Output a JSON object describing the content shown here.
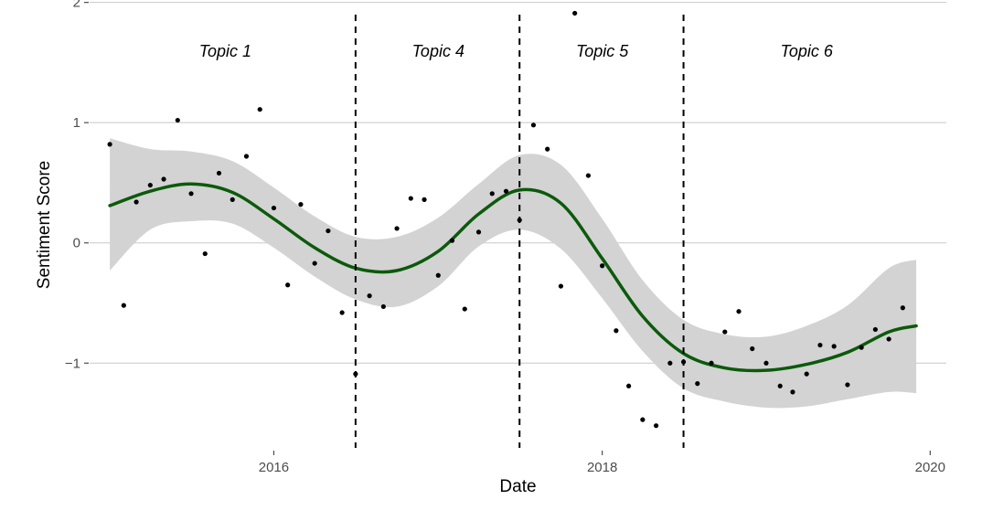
{
  "chart_data": {
    "type": "scatter",
    "title": "",
    "xlabel": "Date",
    "ylabel": "Sentiment Score",
    "x_axis_kind": "date",
    "xlim": [
      "2014-11-17",
      "2020-02-06"
    ],
    "ylim": [
      -1.72,
      2.02
    ],
    "x_ticks": [
      {
        "value": "2016-01-01",
        "label": "2016"
      },
      {
        "value": "2018-01-01",
        "label": "2018"
      },
      {
        "value": "2020-01-01",
        "label": "2020"
      }
    ],
    "y_ticks": [
      {
        "value": -1,
        "label": "−1"
      },
      {
        "value": 0,
        "label": "0"
      },
      {
        "value": 1,
        "label": "1"
      },
      {
        "value": 2,
        "label": "2"
      }
    ],
    "grid": "horizontal",
    "colors": {
      "smooth": "#0b5a0b",
      "ribbon": "#d3d3d3",
      "points": "#000000",
      "grid": "#c8c8c8"
    },
    "topic_breaks": [
      "2016-07-01",
      "2017-07-01",
      "2018-07-01"
    ],
    "topic_labels": [
      {
        "x": "2015-09-15",
        "label": "Topic 1"
      },
      {
        "x": "2017-01-01",
        "label": "Topic 4"
      },
      {
        "x": "2018-01-01",
        "label": "Topic 5"
      },
      {
        "x": "2019-04-01",
        "label": "Topic 6"
      }
    ],
    "points": [
      {
        "x": "2015-01-01",
        "y": 0.82
      },
      {
        "x": "2015-02-01",
        "y": -0.52
      },
      {
        "x": "2015-03-01",
        "y": 0.34
      },
      {
        "x": "2015-04-01",
        "y": 0.48
      },
      {
        "x": "2015-05-01",
        "y": 0.53
      },
      {
        "x": "2015-06-01",
        "y": 1.02
      },
      {
        "x": "2015-07-01",
        "y": 0.41
      },
      {
        "x": "2015-08-01",
        "y": -0.09
      },
      {
        "x": "2015-09-01",
        "y": 0.58
      },
      {
        "x": "2015-10-01",
        "y": 0.36
      },
      {
        "x": "2015-11-01",
        "y": 0.72
      },
      {
        "x": "2015-12-01",
        "y": 1.11
      },
      {
        "x": "2016-01-01",
        "y": 0.29
      },
      {
        "x": "2016-02-01",
        "y": -0.35
      },
      {
        "x": "2016-03-01",
        "y": 0.32
      },
      {
        "x": "2016-04-01",
        "y": -0.17
      },
      {
        "x": "2016-05-01",
        "y": 0.1
      },
      {
        "x": "2016-06-01",
        "y": -0.58
      },
      {
        "x": "2016-07-01",
        "y": -1.09
      },
      {
        "x": "2016-08-01",
        "y": -0.44
      },
      {
        "x": "2016-09-01",
        "y": -0.53
      },
      {
        "x": "2016-10-01",
        "y": 0.12
      },
      {
        "x": "2016-11-01",
        "y": 0.37
      },
      {
        "x": "2016-12-01",
        "y": 0.36
      },
      {
        "x": "2017-01-01",
        "y": -0.27
      },
      {
        "x": "2017-02-01",
        "y": 0.02
      },
      {
        "x": "2017-03-01",
        "y": -0.55
      },
      {
        "x": "2017-04-01",
        "y": 0.09
      },
      {
        "x": "2017-05-01",
        "y": 0.41
      },
      {
        "x": "2017-06-01",
        "y": 0.43
      },
      {
        "x": "2017-07-01",
        "y": 0.19
      },
      {
        "x": "2017-08-01",
        "y": 0.98
      },
      {
        "x": "2017-09-01",
        "y": 0.78
      },
      {
        "x": "2017-10-01",
        "y": -0.36
      },
      {
        "x": "2017-11-01",
        "y": 1.91
      },
      {
        "x": "2017-12-01",
        "y": 0.56
      },
      {
        "x": "2018-01-01",
        "y": -0.19
      },
      {
        "x": "2018-02-01",
        "y": -0.73
      },
      {
        "x": "2018-03-01",
        "y": -1.19
      },
      {
        "x": "2018-04-01",
        "y": -1.47
      },
      {
        "x": "2018-05-01",
        "y": -1.52
      },
      {
        "x": "2018-06-01",
        "y": -1.0
      },
      {
        "x": "2018-07-01",
        "y": -0.99
      },
      {
        "x": "2018-08-01",
        "y": -1.17
      },
      {
        "x": "2018-09-01",
        "y": -1.0
      },
      {
        "x": "2018-10-01",
        "y": -0.74
      },
      {
        "x": "2018-11-01",
        "y": -0.57
      },
      {
        "x": "2018-12-01",
        "y": -0.88
      },
      {
        "x": "2019-01-01",
        "y": -1.0
      },
      {
        "x": "2019-02-01",
        "y": -1.19
      },
      {
        "x": "2019-03-01",
        "y": -1.24
      },
      {
        "x": "2019-04-01",
        "y": -1.09
      },
      {
        "x": "2019-05-01",
        "y": -0.85
      },
      {
        "x": "2019-06-01",
        "y": -0.86
      },
      {
        "x": "2019-07-01",
        "y": -1.18
      },
      {
        "x": "2019-08-01",
        "y": -0.87
      },
      {
        "x": "2019-09-01",
        "y": -0.72
      },
      {
        "x": "2019-10-01",
        "y": -0.8
      },
      {
        "x": "2019-11-01",
        "y": -0.54
      }
    ],
    "smooth": [
      {
        "x": "2015-01-01",
        "fit": 0.31,
        "lower": -0.23,
        "upper": 0.87
      },
      {
        "x": "2015-04-01",
        "fit": 0.43,
        "lower": 0.11,
        "upper": 0.78
      },
      {
        "x": "2015-07-01",
        "fit": 0.49,
        "lower": 0.18,
        "upper": 0.76
      },
      {
        "x": "2015-10-01",
        "fit": 0.42,
        "lower": 0.16,
        "upper": 0.68
      },
      {
        "x": "2016-01-01",
        "fit": 0.2,
        "lower": -0.04,
        "upper": 0.46
      },
      {
        "x": "2016-04-01",
        "fit": -0.04,
        "lower": -0.28,
        "upper": 0.22
      },
      {
        "x": "2016-07-01",
        "fit": -0.21,
        "lower": -0.47,
        "upper": 0.05
      },
      {
        "x": "2016-10-01",
        "fit": -0.23,
        "lower": -0.53,
        "upper": 0.05
      },
      {
        "x": "2017-01-01",
        "fit": -0.07,
        "lower": -0.36,
        "upper": 0.21
      },
      {
        "x": "2017-04-01",
        "fit": 0.24,
        "lower": -0.03,
        "upper": 0.49
      },
      {
        "x": "2017-07-01",
        "fit": 0.44,
        "lower": 0.11,
        "upper": 0.73
      },
      {
        "x": "2017-10-01",
        "fit": 0.33,
        "lower": -0.05,
        "upper": 0.65
      },
      {
        "x": "2018-01-01",
        "fit": -0.13,
        "lower": -0.46,
        "upper": 0.2
      },
      {
        "x": "2018-04-01",
        "fit": -0.61,
        "lower": -0.9,
        "upper": -0.31
      },
      {
        "x": "2018-07-01",
        "fit": -0.92,
        "lower": -1.21,
        "upper": -0.64
      },
      {
        "x": "2018-10-01",
        "fit": -1.04,
        "lower": -1.32,
        "upper": -0.76
      },
      {
        "x": "2019-01-01",
        "fit": -1.06,
        "lower": -1.37,
        "upper": -0.78
      },
      {
        "x": "2019-04-01",
        "fit": -1.01,
        "lower": -1.36,
        "upper": -0.69
      },
      {
        "x": "2019-07-01",
        "fit": -0.91,
        "lower": -1.3,
        "upper": -0.52
      },
      {
        "x": "2019-10-01",
        "fit": -0.74,
        "lower": -1.24,
        "upper": -0.21
      },
      {
        "x": "2019-12-01",
        "fit": -0.69,
        "lower": -1.25,
        "upper": -0.14
      }
    ]
  }
}
